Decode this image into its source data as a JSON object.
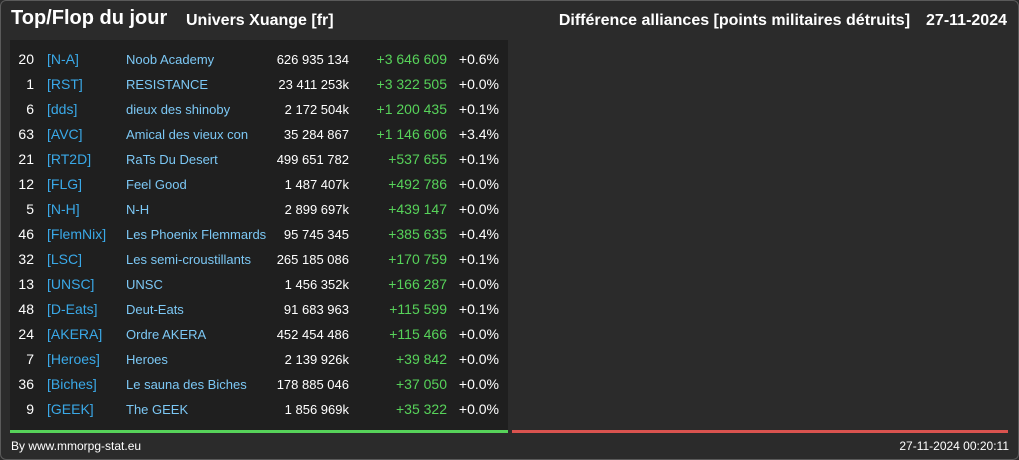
{
  "header": {
    "title": "Top/Flop du jour",
    "universe": "Univers Xuange [fr]",
    "subtitle": "Différence alliances [points militaires détruits]",
    "date": "27-11-2024"
  },
  "colors": {
    "positive": "#57d35a",
    "negative": "#d9534f",
    "tag": "#3aa9e8",
    "name": "#7cc8f5"
  },
  "top_list": [
    {
      "rank": "20",
      "tag": "[N-A]",
      "name": "Noob Academy",
      "points": "626 935 134",
      "diff": "+3 646 609",
      "pct": "+0.6%"
    },
    {
      "rank": "1",
      "tag": "[RST]",
      "name": "RESISTANCE",
      "points": "23 411 253k",
      "diff": "+3 322 505",
      "pct": "+0.0%"
    },
    {
      "rank": "6",
      "tag": "[dds]",
      "name": "dieux des shinoby",
      "points": "2 172 504k",
      "diff": "+1 200 435",
      "pct": "+0.1%"
    },
    {
      "rank": "63",
      "tag": "[AVC]",
      "name": "Amical des vieux con",
      "points": "35 284 867",
      "diff": "+1 146 606",
      "pct": "+3.4%"
    },
    {
      "rank": "21",
      "tag": "[RT2D]",
      "name": "RaTs Du Desert",
      "points": "499 651 782",
      "diff": "+537 655",
      "pct": "+0.1%"
    },
    {
      "rank": "12",
      "tag": "[FLG]",
      "name": "Feel Good",
      "points": "1 487 407k",
      "diff": "+492 786",
      "pct": "+0.0%"
    },
    {
      "rank": "5",
      "tag": "[N-H]",
      "name": "N-H",
      "points": "2 899 697k",
      "diff": "+439 147",
      "pct": "+0.0%"
    },
    {
      "rank": "46",
      "tag": "[FlemNix]",
      "name": "Les Phoenix Flemmards",
      "points": "95 745 345",
      "diff": "+385 635",
      "pct": "+0.4%"
    },
    {
      "rank": "32",
      "tag": "[LSC]",
      "name": "Les semi-croustillants",
      "points": "265 185 086",
      "diff": "+170 759",
      "pct": "+0.1%"
    },
    {
      "rank": "13",
      "tag": "[UNSC]",
      "name": "UNSC",
      "points": "1 456 352k",
      "diff": "+166 287",
      "pct": "+0.0%"
    },
    {
      "rank": "48",
      "tag": "[D-Eats]",
      "name": "Deut-Eats",
      "points": "91 683 963",
      "diff": "+115 599",
      "pct": "+0.1%"
    },
    {
      "rank": "24",
      "tag": "[AKERA]",
      "name": "Ordre AKERA",
      "points": "452 454 486",
      "diff": "+115 466",
      "pct": "+0.0%"
    },
    {
      "rank": "7",
      "tag": "[Heroes]",
      "name": "Heroes",
      "points": "2 139 926k",
      "diff": "+39 842",
      "pct": "+0.0%"
    },
    {
      "rank": "36",
      "tag": "[Biches]",
      "name": "Le sauna des Biches",
      "points": "178 885 046",
      "diff": "+37 050",
      "pct": "+0.0%"
    },
    {
      "rank": "9",
      "tag": "[GEEK]",
      "name": "The GEEK",
      "points": "1 856 969k",
      "diff": "+35 322",
      "pct": "+0.0%"
    }
  ],
  "footer": {
    "credit": "By www.mmorpg-stat.eu",
    "timestamp": "27-11-2024 00:20:11"
  }
}
